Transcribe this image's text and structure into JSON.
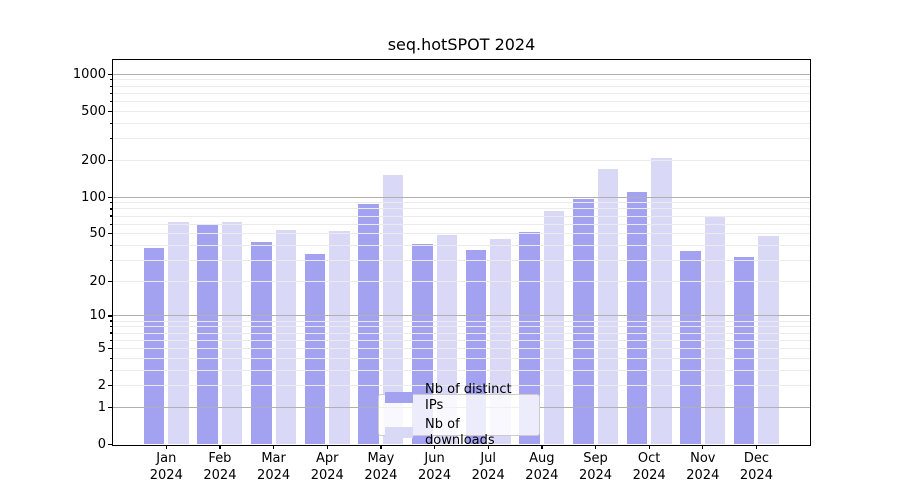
{
  "title": "seq.hotSPOT 2024",
  "chart_data": {
    "type": "bar",
    "title": "seq.hotSPOT 2024",
    "categories": [
      "Jan",
      "Feb",
      "Mar",
      "Apr",
      "May",
      "Jun",
      "Jul",
      "Aug",
      "Sep",
      "Oct",
      "Nov",
      "Dec"
    ],
    "year_label": "2024",
    "series": [
      {
        "name": "Nb of distinct IPs",
        "color": "#a2a2f0",
        "values": [
          38,
          59,
          43,
          34,
          88,
          41,
          37,
          52,
          97,
          110,
          36,
          32
        ]
      },
      {
        "name": "Nb of downloads",
        "color": "#d9d9f7",
        "values": [
          62,
          63,
          54,
          53,
          152,
          49,
          45,
          77,
          170,
          210,
          70,
          48
        ]
      }
    ],
    "xlabel": "",
    "ylabel": "",
    "y_scale": "log1p",
    "ylim": [
      0,
      1500
    ],
    "y_ticks": [
      0,
      1,
      2,
      5,
      10,
      20,
      50,
      100,
      200,
      500,
      1000
    ],
    "y_minor_gridlines": [
      2,
      3,
      4,
      5,
      6,
      7,
      8,
      9,
      20,
      30,
      40,
      50,
      60,
      70,
      80,
      90,
      200,
      300,
      400,
      500,
      600,
      700,
      800,
      900
    ],
    "y_major_gridlines": [
      1,
      10,
      100,
      1000
    ],
    "grid": {
      "major_color": "#b0b0b0",
      "minor_color": "#ebebeb"
    },
    "legend_position": "lower center",
    "axes_color": "#000000",
    "background_color": "#ffffff"
  }
}
